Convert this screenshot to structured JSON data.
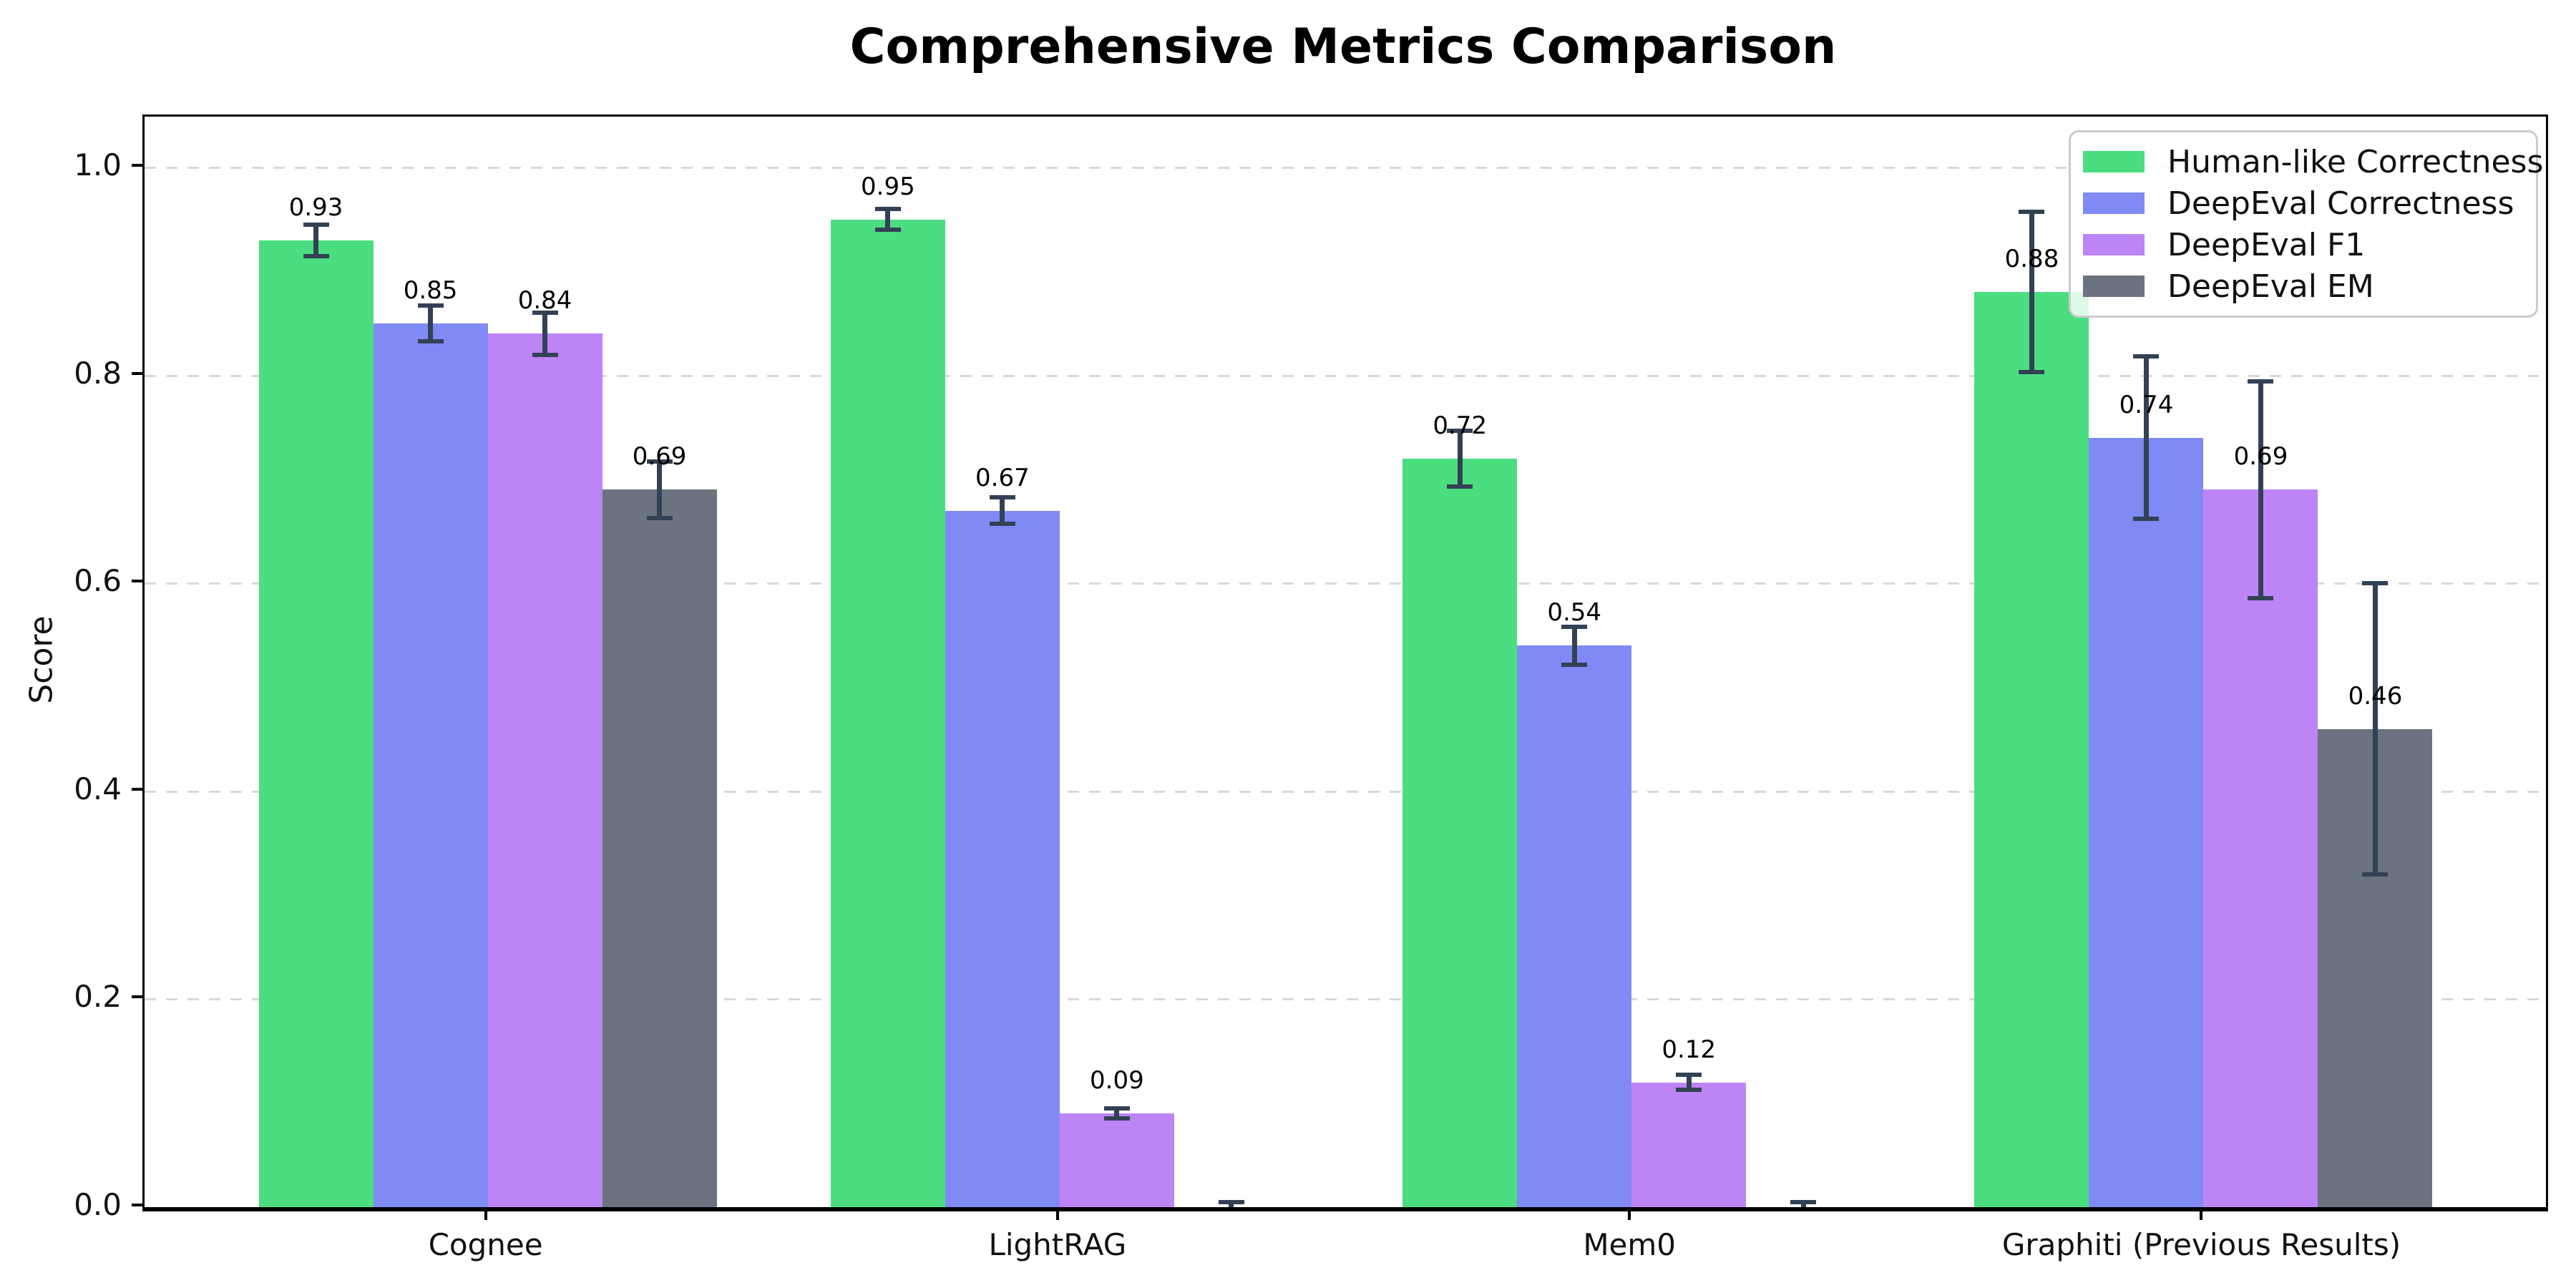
{
  "chart_data": {
    "type": "bar",
    "title": "Comprehensive Metrics Comparison",
    "ylabel": "Score",
    "xlabel": "",
    "categories": [
      "Cognee",
      "LightRAG",
      "Mem0",
      "Graphiti (Previous Results)"
    ],
    "series": [
      {
        "name": "Human-like Correctness",
        "color": "#4ade80",
        "values": [
          0.93,
          0.95,
          0.72,
          0.88
        ],
        "errors": [
          0.015,
          0.01,
          0.027,
          0.077
        ],
        "labels": [
          "0.93",
          "0.95",
          "0.72",
          "0.88"
        ]
      },
      {
        "name": "DeepEval Correctness",
        "color": "#808af5",
        "values": [
          0.85,
          0.67,
          0.54,
          0.74
        ],
        "errors": [
          0.017,
          0.013,
          0.018,
          0.078
        ],
        "labels": [
          "0.85",
          "0.67",
          "0.54",
          "0.74"
        ]
      },
      {
        "name": "DeepEval F1",
        "color": "#bd84f6",
        "values": [
          0.84,
          0.09,
          0.12,
          0.69
        ],
        "errors": [
          0.02,
          0.005,
          0.007,
          0.104
        ],
        "labels": [
          "0.84",
          "0.09",
          "0.12",
          "0.69"
        ]
      },
      {
        "name": "DeepEval EM",
        "color": "#6b7280",
        "values": [
          0.69,
          0.0,
          0.0,
          0.46
        ],
        "errors": [
          0.027,
          0.005,
          0.005,
          0.14
        ],
        "labels": [
          "0.69",
          "",
          "",
          "0.46"
        ]
      }
    ],
    "yticks": [
      1.0,
      0.8,
      0.6,
      0.4,
      0.2,
      0.0
    ],
    "ytick_labels": [
      "1.0",
      "0.8",
      "0.6",
      "0.4",
      "0.2",
      "0.0"
    ],
    "ylim": [
      0,
      1.05
    ],
    "grid": "horizontal-dashed",
    "legend_position": "upper-right",
    "colors": {
      "errorbar": "#334155",
      "grid": "#d9d9d9",
      "spine": "#000000",
      "legend_border": "#cccccc",
      "background": "#ffffff"
    }
  }
}
